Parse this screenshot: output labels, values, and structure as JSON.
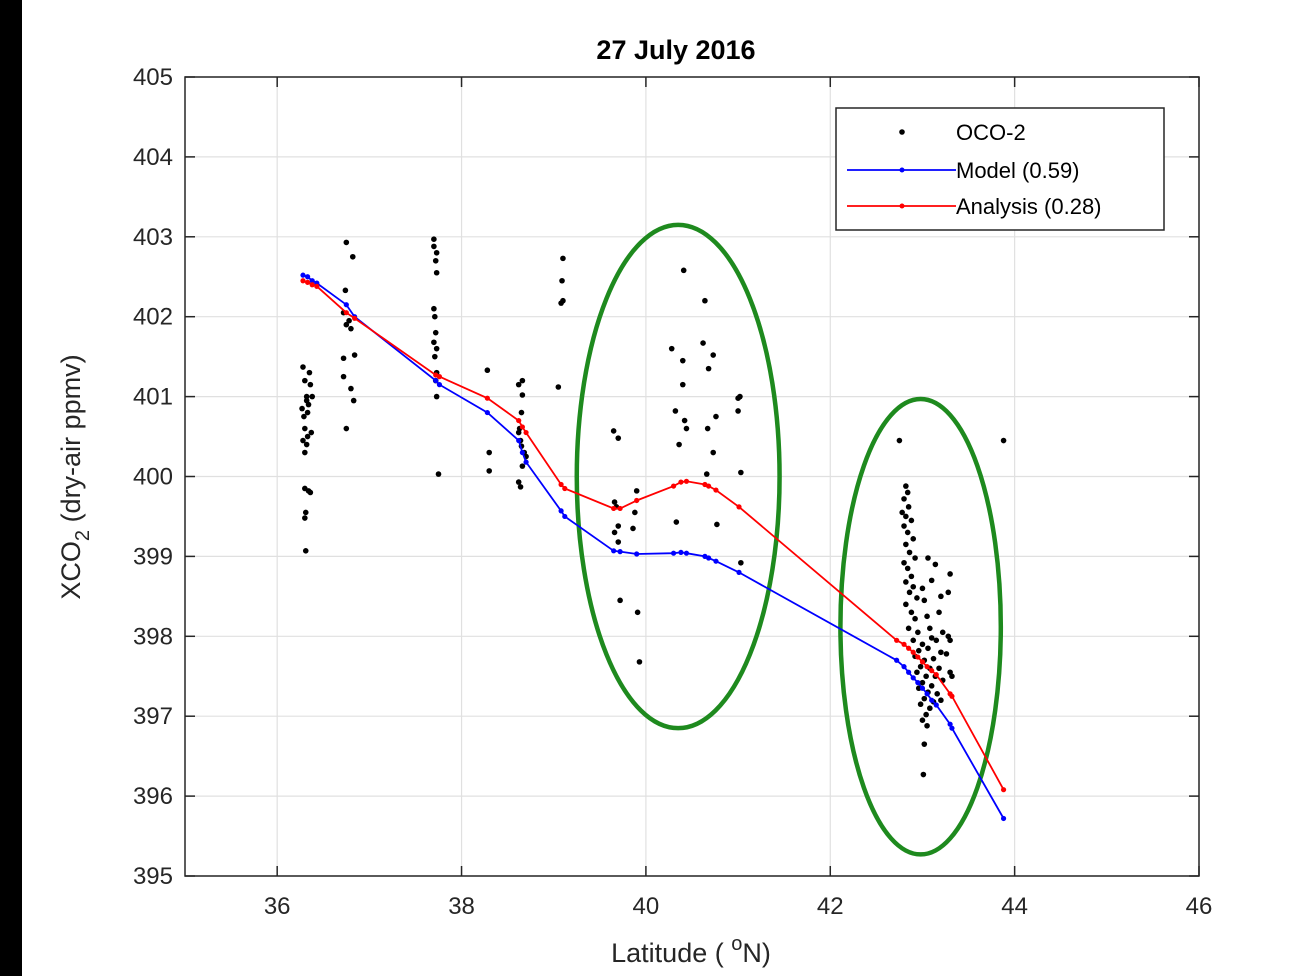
{
  "chart_data": {
    "type": "scatter",
    "title": "27 July 2016",
    "xlabel": "Latitude ( ",
    "xlabel_sup": "o",
    "xlabel_end": "N)",
    "ylabel_pre": "XCO",
    "ylabel_sub": "2",
    "ylabel_post": "  (dry-air ppmv)",
    "xlim": [
      35,
      46
    ],
    "ylim": [
      395,
      405
    ],
    "xticks": [
      "36",
      "38",
      "40",
      "42",
      "44",
      "46"
    ],
    "yticks": [
      "395",
      "396",
      "397",
      "398",
      "399",
      "400",
      "401",
      "402",
      "403",
      "404",
      "405"
    ],
    "grid": true,
    "legend_position": "top-right",
    "colors": {
      "oco2": "#000000",
      "model": "#0000ff",
      "analysis": "#ff0000",
      "ellipse": "#1e8a1e",
      "grid": "#e0e0e0"
    },
    "series": [
      {
        "name": "OCO-2",
        "style": "points",
        "points": [
          [
            36.28,
            401.37
          ],
          [
            36.3,
            401.2
          ],
          [
            36.32,
            400.95
          ],
          [
            36.27,
            400.85
          ],
          [
            36.33,
            400.8
          ],
          [
            36.29,
            400.75
          ],
          [
            36.3,
            400.6
          ],
          [
            36.28,
            400.45
          ],
          [
            36.32,
            400.4
          ],
          [
            36.3,
            400.3
          ],
          [
            36.35,
            401.3
          ],
          [
            36.36,
            401.15
          ],
          [
            36.38,
            401.0
          ],
          [
            36.34,
            400.9
          ],
          [
            36.37,
            400.55
          ],
          [
            36.33,
            400.5
          ],
          [
            36.3,
            399.85
          ],
          [
            36.34,
            399.82
          ],
          [
            36.36,
            399.8
          ],
          [
            36.31,
            399.55
          ],
          [
            36.3,
            399.48
          ],
          [
            36.31,
            399.07
          ],
          [
            36.32,
            401.0
          ],
          [
            36.75,
            402.93
          ],
          [
            36.82,
            402.75
          ],
          [
            36.74,
            402.33
          ],
          [
            36.72,
            402.05
          ],
          [
            36.78,
            401.95
          ],
          [
            36.75,
            401.9
          ],
          [
            36.8,
            401.85
          ],
          [
            36.84,
            401.52
          ],
          [
            36.72,
            401.48
          ],
          [
            36.72,
            401.25
          ],
          [
            36.8,
            401.1
          ],
          [
            36.83,
            400.95
          ],
          [
            36.75,
            400.6
          ],
          [
            37.7,
            402.97
          ],
          [
            37.7,
            402.88
          ],
          [
            37.73,
            402.8
          ],
          [
            37.72,
            402.7
          ],
          [
            37.73,
            402.55
          ],
          [
            37.7,
            402.1
          ],
          [
            37.71,
            402.0
          ],
          [
            37.72,
            401.8
          ],
          [
            37.7,
            401.68
          ],
          [
            37.73,
            401.6
          ],
          [
            37.71,
            401.5
          ],
          [
            37.73,
            401.3
          ],
          [
            37.72,
            401.2
          ],
          [
            37.73,
            401.0
          ],
          [
            37.75,
            400.03
          ],
          [
            38.28,
            401.33
          ],
          [
            38.3,
            400.3
          ],
          [
            38.3,
            400.07
          ],
          [
            38.62,
            401.15
          ],
          [
            38.66,
            401.2
          ],
          [
            38.66,
            401.02
          ],
          [
            38.65,
            400.8
          ],
          [
            38.63,
            400.6
          ],
          [
            38.62,
            400.55
          ],
          [
            38.64,
            400.45
          ],
          [
            38.65,
            400.38
          ],
          [
            38.68,
            400.3
          ],
          [
            38.7,
            400.25
          ],
          [
            38.66,
            400.13
          ],
          [
            38.62,
            399.93
          ],
          [
            38.64,
            399.87
          ],
          [
            39.1,
            402.73
          ],
          [
            39.09,
            402.45
          ],
          [
            39.1,
            402.2
          ],
          [
            39.08,
            402.17
          ],
          [
            39.05,
            401.12
          ],
          [
            39.65,
            400.57
          ],
          [
            39.7,
            400.48
          ],
          [
            39.66,
            399.68
          ],
          [
            39.68,
            399.62
          ],
          [
            39.7,
            399.38
          ],
          [
            39.66,
            399.3
          ],
          [
            39.7,
            399.18
          ],
          [
            39.72,
            398.45
          ],
          [
            39.9,
            399.82
          ],
          [
            39.88,
            399.55
          ],
          [
            39.86,
            399.35
          ],
          [
            39.91,
            398.3
          ],
          [
            39.93,
            397.68
          ],
          [
            40.28,
            401.6
          ],
          [
            40.32,
            400.82
          ],
          [
            40.36,
            400.4
          ],
          [
            40.33,
            399.43
          ],
          [
            40.41,
            402.58
          ],
          [
            40.4,
            401.45
          ],
          [
            40.4,
            401.15
          ],
          [
            40.42,
            400.7
          ],
          [
            40.44,
            400.6
          ],
          [
            40.64,
            402.2
          ],
          [
            40.62,
            401.67
          ],
          [
            40.68,
            401.35
          ],
          [
            40.67,
            400.6
          ],
          [
            40.66,
            400.03
          ],
          [
            40.73,
            401.52
          ],
          [
            40.73,
            400.3
          ],
          [
            40.76,
            400.75
          ],
          [
            40.77,
            399.4
          ],
          [
            41.0,
            400.98
          ],
          [
            41.02,
            401.0
          ],
          [
            41.0,
            400.82
          ],
          [
            41.03,
            400.05
          ],
          [
            41.03,
            398.92
          ],
          [
            42.75,
            400.45
          ],
          [
            43.88,
            400.45
          ],
          [
            42.82,
            399.88
          ],
          [
            42.84,
            399.8
          ],
          [
            42.8,
            399.72
          ],
          [
            42.85,
            399.62
          ],
          [
            42.78,
            399.55
          ],
          [
            42.82,
            399.5
          ],
          [
            42.88,
            399.45
          ],
          [
            42.8,
            399.38
          ],
          [
            42.84,
            399.3
          ],
          [
            42.9,
            399.22
          ],
          [
            42.82,
            399.15
          ],
          [
            42.86,
            399.05
          ],
          [
            42.92,
            398.98
          ],
          [
            42.8,
            398.92
          ],
          [
            42.84,
            398.85
          ],
          [
            42.88,
            398.75
          ],
          [
            42.82,
            398.68
          ],
          [
            42.9,
            398.62
          ],
          [
            42.86,
            398.55
          ],
          [
            42.94,
            398.48
          ],
          [
            42.82,
            398.4
          ],
          [
            42.88,
            398.3
          ],
          [
            42.92,
            398.22
          ],
          [
            42.85,
            398.1
          ],
          [
            42.95,
            398.05
          ],
          [
            42.9,
            397.95
          ],
          [
            43.0,
            397.9
          ],
          [
            42.96,
            397.82
          ],
          [
            42.92,
            397.75
          ],
          [
            43.02,
            397.7
          ],
          [
            42.98,
            397.62
          ],
          [
            42.94,
            397.55
          ],
          [
            43.04,
            397.5
          ],
          [
            43.0,
            397.42
          ],
          [
            42.96,
            397.35
          ],
          [
            43.06,
            397.3
          ],
          [
            43.02,
            397.22
          ],
          [
            42.98,
            397.15
          ],
          [
            43.08,
            397.1
          ],
          [
            43.04,
            397.02
          ],
          [
            43.0,
            396.95
          ],
          [
            43.05,
            396.88
          ],
          [
            43.02,
            396.65
          ],
          [
            43.01,
            396.27
          ],
          [
            43.0,
            398.6
          ],
          [
            43.02,
            398.45
          ],
          [
            43.05,
            398.25
          ],
          [
            43.08,
            398.1
          ],
          [
            43.1,
            397.98
          ],
          [
            43.06,
            397.85
          ],
          [
            43.12,
            397.72
          ],
          [
            43.08,
            397.6
          ],
          [
            43.14,
            397.5
          ],
          [
            43.1,
            397.38
          ],
          [
            43.16,
            397.28
          ],
          [
            43.12,
            397.18
          ],
          [
            43.18,
            397.6
          ],
          [
            43.15,
            397.95
          ],
          [
            43.2,
            397.8
          ],
          [
            43.22,
            398.05
          ],
          [
            43.18,
            398.3
          ],
          [
            43.06,
            398.98
          ],
          [
            43.14,
            398.9
          ],
          [
            43.1,
            398.7
          ],
          [
            43.2,
            398.5
          ],
          [
            43.28,
            398.0
          ],
          [
            43.3,
            397.95
          ],
          [
            43.26,
            397.78
          ],
          [
            43.3,
            397.55
          ],
          [
            43.32,
            397.5
          ],
          [
            43.3,
            398.78
          ],
          [
            43.28,
            398.55
          ],
          [
            43.22,
            397.45
          ],
          [
            43.2,
            397.2
          ]
        ]
      },
      {
        "name": "Model (0.59)",
        "style": "line-markers",
        "points": [
          [
            36.28,
            402.52
          ],
          [
            36.33,
            402.5
          ],
          [
            36.38,
            402.45
          ],
          [
            36.43,
            402.42
          ],
          [
            36.75,
            402.15
          ],
          [
            36.84,
            402.0
          ],
          [
            37.72,
            401.2
          ],
          [
            37.76,
            401.15
          ],
          [
            38.28,
            400.8
          ],
          [
            38.62,
            400.45
          ],
          [
            38.66,
            400.3
          ],
          [
            38.7,
            400.18
          ],
          [
            39.08,
            399.57
          ],
          [
            39.12,
            399.5
          ],
          [
            39.65,
            399.07
          ],
          [
            39.72,
            399.06
          ],
          [
            39.9,
            399.03
          ],
          [
            40.3,
            399.04
          ],
          [
            40.38,
            399.05
          ],
          [
            40.44,
            399.04
          ],
          [
            40.64,
            399.0
          ],
          [
            40.68,
            398.98
          ],
          [
            40.76,
            398.94
          ],
          [
            41.01,
            398.8
          ],
          [
            42.72,
            397.7
          ],
          [
            42.8,
            397.62
          ],
          [
            42.85,
            397.55
          ],
          [
            42.9,
            397.48
          ],
          [
            42.95,
            397.42
          ],
          [
            43.0,
            397.35
          ],
          [
            43.05,
            397.28
          ],
          [
            43.1,
            397.2
          ],
          [
            43.15,
            397.14
          ],
          [
            43.3,
            396.9
          ],
          [
            43.32,
            396.85
          ],
          [
            43.88,
            395.72
          ]
        ]
      },
      {
        "name": "Analysis (0.28)",
        "style": "line-markers",
        "points": [
          [
            36.28,
            402.45
          ],
          [
            36.33,
            402.43
          ],
          [
            36.38,
            402.4
          ],
          [
            36.43,
            402.38
          ],
          [
            36.75,
            402.05
          ],
          [
            36.84,
            401.98
          ],
          [
            37.72,
            401.27
          ],
          [
            37.76,
            401.25
          ],
          [
            38.28,
            400.98
          ],
          [
            38.62,
            400.7
          ],
          [
            38.66,
            400.62
          ],
          [
            38.7,
            400.55
          ],
          [
            39.08,
            399.9
          ],
          [
            39.12,
            399.85
          ],
          [
            39.65,
            399.6
          ],
          [
            39.72,
            399.6
          ],
          [
            39.9,
            399.7
          ],
          [
            40.3,
            399.88
          ],
          [
            40.38,
            399.93
          ],
          [
            40.44,
            399.94
          ],
          [
            40.64,
            399.9
          ],
          [
            40.68,
            399.88
          ],
          [
            40.76,
            399.83
          ],
          [
            41.01,
            399.62
          ],
          [
            42.72,
            397.95
          ],
          [
            42.8,
            397.9
          ],
          [
            42.85,
            397.85
          ],
          [
            42.9,
            397.8
          ],
          [
            42.95,
            397.74
          ],
          [
            43.0,
            397.68
          ],
          [
            43.05,
            397.62
          ],
          [
            43.1,
            397.57
          ],
          [
            43.15,
            397.52
          ],
          [
            43.3,
            397.28
          ],
          [
            43.32,
            397.25
          ],
          [
            43.88,
            396.08
          ]
        ]
      }
    ],
    "annotations": [
      {
        "type": "ellipse",
        "center": [
          40.35,
          400.0
        ],
        "rx": 1.1,
        "ry": 3.15
      },
      {
        "type": "ellipse",
        "center": [
          42.98,
          398.12
        ],
        "rx": 0.87,
        "ry": 2.85
      }
    ]
  }
}
